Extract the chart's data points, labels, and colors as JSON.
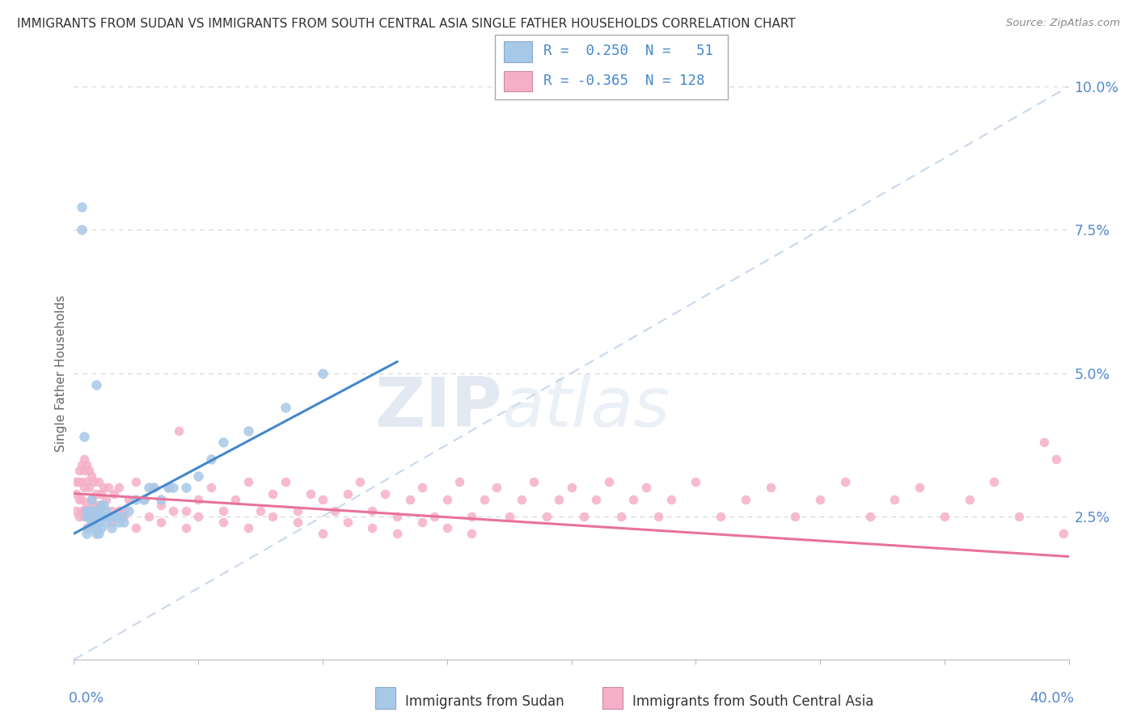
{
  "title": "IMMIGRANTS FROM SUDAN VS IMMIGRANTS FROM SOUTH CENTRAL ASIA SINGLE FATHER HOUSEHOLDS CORRELATION CHART",
  "source": "Source: ZipAtlas.com",
  "ylabel": "Single Father Households",
  "xlim": [
    0.0,
    0.4
  ],
  "ylim": [
    0.0,
    0.1
  ],
  "yaxis_ticks": [
    0.0,
    0.025,
    0.05,
    0.075,
    0.1
  ],
  "yaxis_tick_labels": [
    "",
    "2.5%",
    "5.0%",
    "7.5%",
    "10.0%"
  ],
  "scatter_color1": "#a8c8e8",
  "scatter_color2": "#f5b0c8",
  "trend_color1": "#4488cc",
  "trend_color2": "#e8729a",
  "diag_line_color": "#c8d8ec",
  "legend_label1": "Immigrants from Sudan",
  "legend_label2": "Immigrants from South Central Asia",
  "r1": "0.250",
  "n1": "51",
  "r2": "-0.365",
  "n2": "128",
  "watermark_zip": "ZIP",
  "watermark_atlas": "atlas",
  "sudan_x": [
    0.003,
    0.003,
    0.004,
    0.005,
    0.005,
    0.005,
    0.006,
    0.006,
    0.007,
    0.007,
    0.007,
    0.008,
    0.008,
    0.008,
    0.009,
    0.009,
    0.009,
    0.01,
    0.01,
    0.01,
    0.01,
    0.011,
    0.011,
    0.011,
    0.012,
    0.012,
    0.013,
    0.013,
    0.014,
    0.015,
    0.015,
    0.016,
    0.017,
    0.018,
    0.019,
    0.02,
    0.022,
    0.025,
    0.028,
    0.03,
    0.032,
    0.035,
    0.038,
    0.04,
    0.045,
    0.05,
    0.055,
    0.06,
    0.07,
    0.085,
    0.1
  ],
  "sudan_y": [
    0.075,
    0.079,
    0.039,
    0.026,
    0.025,
    0.022,
    0.025,
    0.023,
    0.028,
    0.026,
    0.024,
    0.026,
    0.025,
    0.024,
    0.048,
    0.023,
    0.022,
    0.026,
    0.025,
    0.024,
    0.022,
    0.027,
    0.025,
    0.023,
    0.027,
    0.025,
    0.026,
    0.024,
    0.025,
    0.025,
    0.023,
    0.025,
    0.025,
    0.024,
    0.025,
    0.024,
    0.026,
    0.028,
    0.028,
    0.03,
    0.03,
    0.028,
    0.03,
    0.03,
    0.03,
    0.032,
    0.035,
    0.038,
    0.04,
    0.044,
    0.05
  ],
  "sca_x": [
    0.001,
    0.001,
    0.001,
    0.002,
    0.002,
    0.002,
    0.002,
    0.003,
    0.003,
    0.003,
    0.004,
    0.004,
    0.004,
    0.004,
    0.005,
    0.005,
    0.005,
    0.006,
    0.006,
    0.006,
    0.007,
    0.007,
    0.008,
    0.008,
    0.009,
    0.009,
    0.01,
    0.01,
    0.011,
    0.012,
    0.013,
    0.014,
    0.015,
    0.016,
    0.018,
    0.02,
    0.022,
    0.025,
    0.028,
    0.032,
    0.035,
    0.038,
    0.042,
    0.045,
    0.05,
    0.055,
    0.06,
    0.065,
    0.07,
    0.075,
    0.08,
    0.085,
    0.09,
    0.095,
    0.1,
    0.105,
    0.11,
    0.115,
    0.12,
    0.125,
    0.13,
    0.135,
    0.14,
    0.145,
    0.15,
    0.155,
    0.16,
    0.165,
    0.17,
    0.175,
    0.18,
    0.185,
    0.19,
    0.195,
    0.2,
    0.205,
    0.21,
    0.215,
    0.22,
    0.225,
    0.23,
    0.235,
    0.24,
    0.25,
    0.26,
    0.27,
    0.28,
    0.29,
    0.3,
    0.31,
    0.32,
    0.33,
    0.34,
    0.35,
    0.36,
    0.37,
    0.38,
    0.39,
    0.395,
    0.398,
    0.003,
    0.004,
    0.005,
    0.006,
    0.007,
    0.008,
    0.01,
    0.012,
    0.015,
    0.018,
    0.02,
    0.025,
    0.03,
    0.035,
    0.04,
    0.045,
    0.05,
    0.06,
    0.07,
    0.08,
    0.09,
    0.1,
    0.11,
    0.12,
    0.13,
    0.14,
    0.15,
    0.16
  ],
  "sca_y": [
    0.031,
    0.029,
    0.026,
    0.033,
    0.031,
    0.028,
    0.025,
    0.034,
    0.031,
    0.028,
    0.035,
    0.033,
    0.03,
    0.026,
    0.034,
    0.031,
    0.027,
    0.033,
    0.03,
    0.026,
    0.032,
    0.028,
    0.031,
    0.027,
    0.029,
    0.026,
    0.031,
    0.027,
    0.029,
    0.03,
    0.028,
    0.03,
    0.026,
    0.029,
    0.03,
    0.026,
    0.028,
    0.031,
    0.028,
    0.03,
    0.027,
    0.03,
    0.04,
    0.026,
    0.028,
    0.03,
    0.026,
    0.028,
    0.031,
    0.026,
    0.029,
    0.031,
    0.026,
    0.029,
    0.028,
    0.026,
    0.029,
    0.031,
    0.026,
    0.029,
    0.025,
    0.028,
    0.03,
    0.025,
    0.028,
    0.031,
    0.025,
    0.028,
    0.03,
    0.025,
    0.028,
    0.031,
    0.025,
    0.028,
    0.03,
    0.025,
    0.028,
    0.031,
    0.025,
    0.028,
    0.03,
    0.025,
    0.028,
    0.031,
    0.025,
    0.028,
    0.03,
    0.025,
    0.028,
    0.031,
    0.025,
    0.028,
    0.03,
    0.025,
    0.028,
    0.031,
    0.025,
    0.038,
    0.035,
    0.022,
    0.026,
    0.025,
    0.023,
    0.025,
    0.024,
    0.025,
    0.026,
    0.025,
    0.024,
    0.026,
    0.025,
    0.023,
    0.025,
    0.024,
    0.026,
    0.023,
    0.025,
    0.024,
    0.023,
    0.025,
    0.024,
    0.022,
    0.024,
    0.023,
    0.022,
    0.024,
    0.023,
    0.022
  ],
  "trend1_x": [
    0.0,
    0.13
  ],
  "trend1_y": [
    0.022,
    0.052
  ],
  "trend2_x": [
    0.0,
    0.4
  ],
  "trend2_y": [
    0.029,
    0.018
  ]
}
